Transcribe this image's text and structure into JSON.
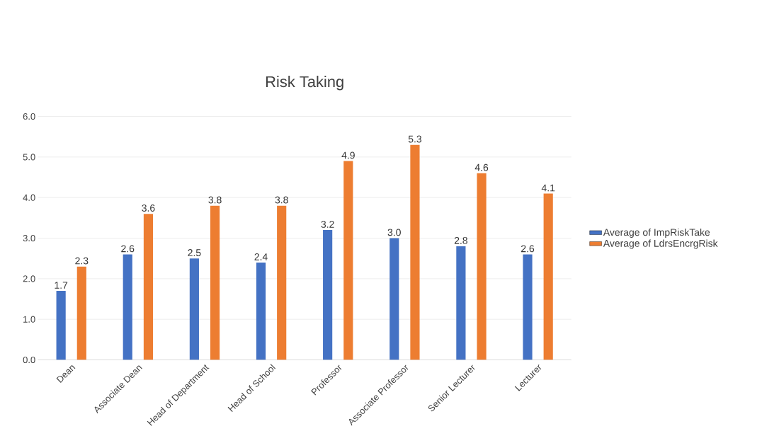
{
  "chart_data": {
    "type": "bar",
    "title": "Risk Taking",
    "categories": [
      "Dean",
      "Associate Dean",
      "Head of Department",
      "Head of School",
      "Professor",
      "Associate Professor",
      "Senior Lecturer",
      "Lecturer"
    ],
    "series": [
      {
        "name": "Average of ImpRiskTake",
        "color": "#4472c4",
        "values": [
          1.7,
          2.6,
          2.5,
          2.4,
          3.2,
          3.0,
          2.8,
          2.6
        ],
        "value_labels": [
          "1.7",
          "2.6",
          "2.5",
          "2.4",
          "3.2",
          "3.0",
          "2.8",
          "2.6"
        ]
      },
      {
        "name": "Average of LdrsEncrgRisk",
        "color": "#ed7d31",
        "values": [
          2.3,
          3.6,
          3.8,
          3.8,
          4.9,
          5.3,
          4.6,
          4.1
        ],
        "value_labels": [
          "2.3",
          "3.6",
          "3.8",
          "3.8",
          "4.9",
          "5.3",
          "4.6",
          "4.1"
        ]
      }
    ],
    "ylim": [
      0,
      6
    ],
    "yticks": [
      {
        "value": 0,
        "label": "0.0"
      },
      {
        "value": 1,
        "label": "1.0"
      },
      {
        "value": 2,
        "label": "2.0"
      },
      {
        "value": 3,
        "label": "3.0"
      },
      {
        "value": 4,
        "label": "4.0"
      },
      {
        "value": 5,
        "label": "5.0"
      },
      {
        "value": 6,
        "label": "6.0"
      }
    ],
    "grid": "y",
    "legend": "right"
  }
}
